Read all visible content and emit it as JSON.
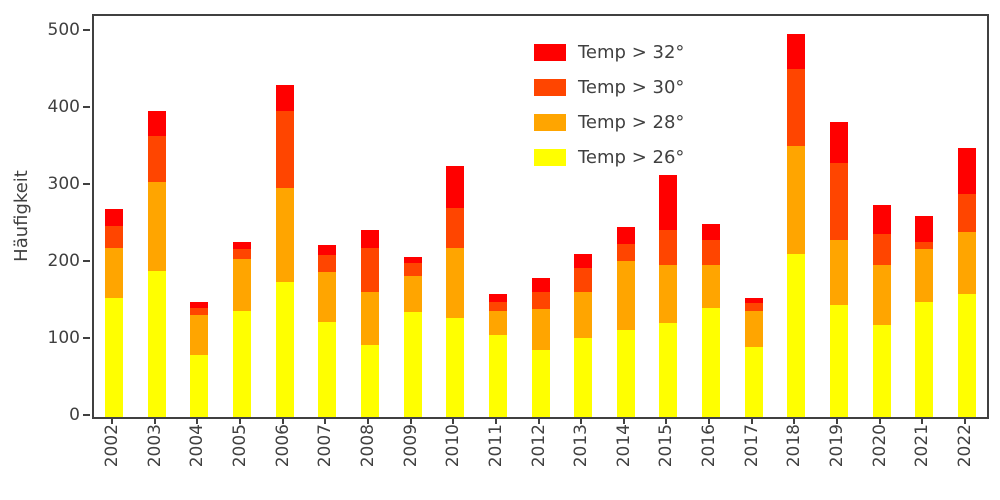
{
  "figure": {
    "ylabel": "Häufigkeit",
    "background_color": "#ffffff",
    "axis_color": "#404040",
    "text_color": "#404040"
  },
  "chart_data": {
    "type": "bar",
    "stacked": true,
    "title": "",
    "xlabel": "",
    "ylabel": "Häufigkeit",
    "grid": false,
    "legend_position": "upper center-left",
    "legend_frame": false,
    "categories": [
      "2002",
      "2003",
      "2004",
      "2005",
      "2006",
      "2007",
      "2008",
      "2009",
      "2010",
      "2011",
      "2012",
      "2013",
      "2014",
      "2015",
      "2016",
      "2017",
      "2018",
      "2019",
      "2020",
      "2021",
      "2022"
    ],
    "series": [
      {
        "name": "Temp > 32°",
        "color": "#ff0000",
        "values": [
          22,
          32,
          8,
          9,
          34,
          13,
          23,
          8,
          54,
          10,
          18,
          19,
          22,
          71,
          21,
          6,
          45,
          53,
          37,
          33,
          60
        ]
      },
      {
        "name": "Temp > 30°",
        "color": "#ff4500",
        "values": [
          28,
          60,
          9,
          13,
          100,
          22,
          57,
          17,
          52,
          12,
          23,
          30,
          22,
          45,
          33,
          10,
          100,
          100,
          40,
          10,
          50
        ]
      },
      {
        "name": "Temp > 28°",
        "color": "#ffa500",
        "values": [
          65,
          115,
          53,
          67,
          123,
          65,
          70,
          46,
          92,
          31,
          53,
          60,
          90,
          76,
          55,
          47,
          140,
          85,
          78,
          68,
          80
        ]
      },
      {
        "name": "Temp > 26°",
        "color": "#ffff00",
        "values": [
          155,
          190,
          80,
          138,
          175,
          123,
          93,
          137,
          128,
          107,
          87,
          103,
          113,
          122,
          142,
          91,
          212,
          145,
          120,
          150,
          160
        ]
      }
    ],
    "stack_order_bottom_to_top": [
      "Temp > 26°",
      "Temp > 28°",
      "Temp > 30°",
      "Temp > 32°"
    ],
    "stack_totals": [
      270,
      397,
      150,
      227,
      432,
      223,
      243,
      208,
      326,
      160,
      181,
      212,
      247,
      314,
      251,
      154,
      497,
      383,
      275,
      261,
      350
    ],
    "yticks": [
      0,
      100,
      200,
      300,
      400,
      500
    ],
    "ylim": [
      0,
      521
    ]
  }
}
